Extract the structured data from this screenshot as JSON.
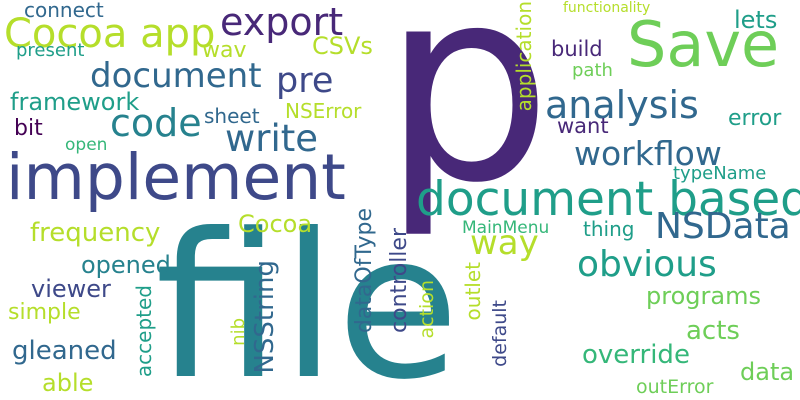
{
  "colors": {
    "c1": "#1f9e89",
    "c2": "#6ece58",
    "c3": "#482878",
    "c4": "#31688e",
    "c5": "#26828e",
    "c6": "#3e4989",
    "c7": "#35b779",
    "c8": "#b5de2b",
    "c9": "#440154"
  },
  "words": {
    "p": "p",
    "file": "file",
    "implement": "implement",
    "save": "Save",
    "document_based": "document based",
    "cocoa_app": "Cocoa app",
    "export": "export",
    "document": "document",
    "analysis": "analysis",
    "workflow": "workflow",
    "code": "code",
    "write": "write",
    "pre": "pre",
    "nsdata": "NSData",
    "way": "way",
    "obvious": "obvious",
    "framework": "framework",
    "csvs": "CSVs",
    "wav": "wav",
    "present": "present",
    "connect": "connect",
    "functionality": "functionality",
    "lets": "lets",
    "build": "build",
    "path": "path",
    "want": "want",
    "error": "error",
    "typename": "typeName",
    "bit": "bit",
    "sheet": "sheet",
    "nserror": "NSError",
    "open": "open",
    "frequency": "frequency",
    "cocoa": "Cocoa",
    "mainmenu": "MainMenu",
    "thing": "thing",
    "opened": "opened",
    "viewer": "viewer",
    "simple": "simple",
    "gleaned": "gleaned",
    "able": "able",
    "programs": "programs",
    "acts": "acts",
    "override": "override",
    "data": "data",
    "outerror": "outError",
    "application": "application",
    "nsstring": "NSString",
    "dataoftype": "dataOfType",
    "controller": "controller",
    "action": "action",
    "outlet": "outlet",
    "default": "default",
    "accepted": "accepted",
    "nib": "nib"
  }
}
